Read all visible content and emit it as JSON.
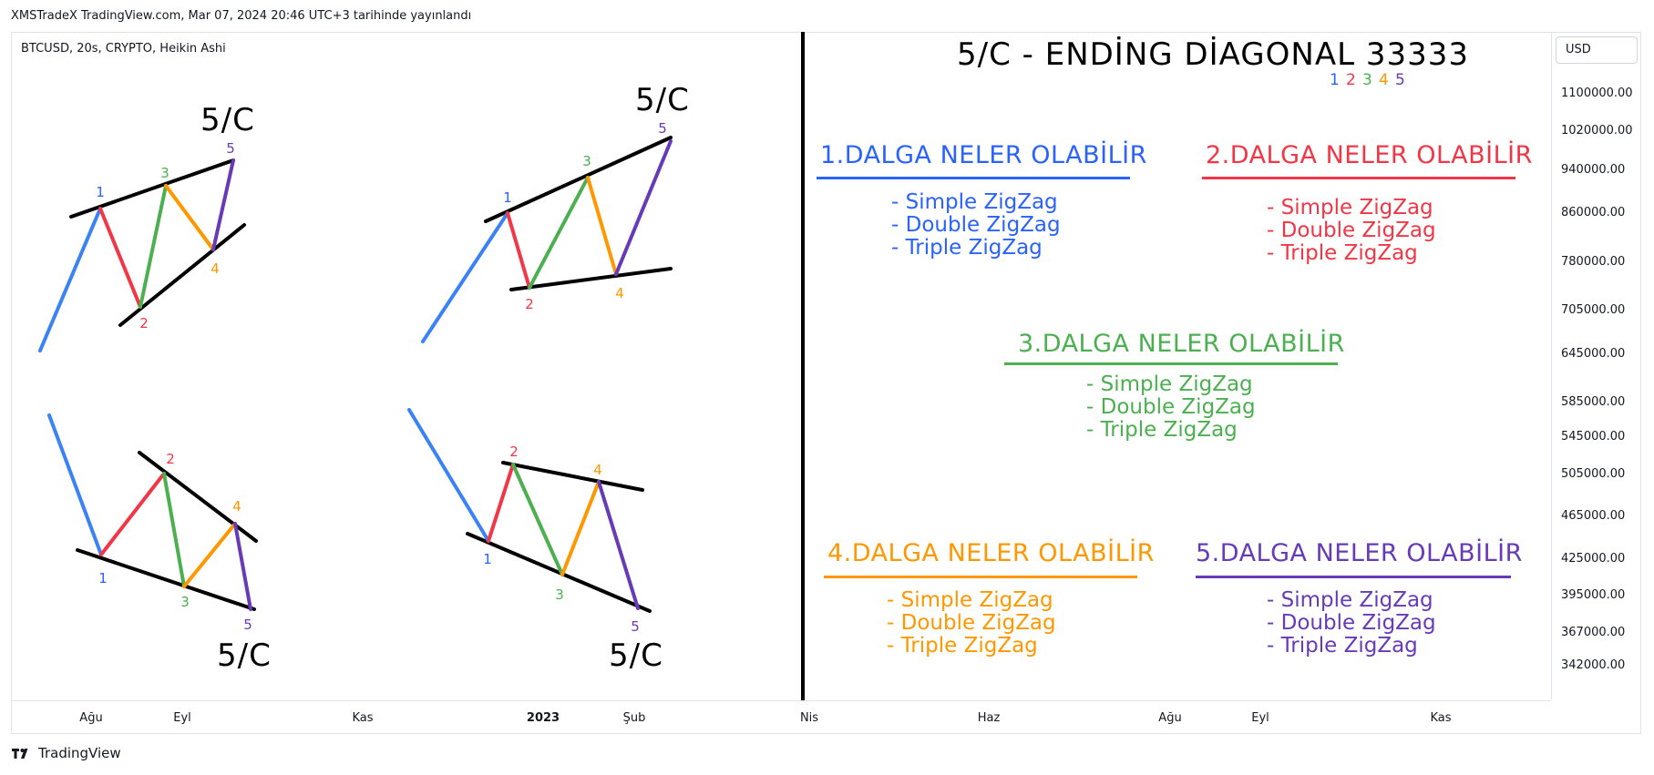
{
  "header": {
    "published_line": "XMSTradeX TradingView.com, Mar 07, 2024 20:46 UTC+3 tarihinde yayınlandı",
    "symbol_line": "BTCUSD, 20s, CRYPTO, Heikin Ashi"
  },
  "colors": {
    "wave1": "#2962ff",
    "wave2": "#f23645",
    "wave3": "#4caf50",
    "wave4": "#ff9800",
    "wave5": "#673ab7",
    "impulse": "#3b82f6",
    "divider": "#000000"
  },
  "main_title": "5/C - ENDİNG DİAGONAL  33333",
  "title_digits": [
    "1",
    "2",
    "3",
    "4",
    "5"
  ],
  "diagram_label": "5/C",
  "wave_labels": [
    "1",
    "2",
    "3",
    "4",
    "5"
  ],
  "wave_sections": [
    {
      "title": "1.DALGA NELER OLABİLİR",
      "items": [
        "- Simple ZigZag",
        "- Double ZigZag",
        "- Triple ZigZag"
      ]
    },
    {
      "title": "2.DALGA NELER OLABİLİR",
      "items": [
        "- Simple ZigZag",
        "- Double ZigZag",
        "- Triple ZigZag"
      ]
    },
    {
      "title": "3.DALGA NELER OLABİLİR",
      "items": [
        "- Simple ZigZag",
        "- Double ZigZag",
        "- Triple ZigZag"
      ]
    },
    {
      "title": "4.DALGA NELER OLABİLİR",
      "items": [
        "- Simple ZigZag",
        "- Double ZigZag",
        "- Triple ZigZag"
      ]
    },
    {
      "title": "5.DALGA NELER OLABİLİR",
      "items": [
        "- Simple ZigZag",
        "- Double ZigZag",
        "- Triple ZigZag"
      ]
    }
  ],
  "price_axis": {
    "currency": "USD",
    "labels": [
      "1100000.00",
      "1020000.00",
      "940000.00",
      "860000.00",
      "780000.00",
      "705000.00",
      "645000.00",
      "585000.00",
      "545000.00",
      "505000.00",
      "465000.00",
      "425000.00",
      "395000.00",
      "367000.00",
      "342000.00"
    ]
  },
  "time_axis": {
    "labels": [
      "Ağu",
      "Eyl",
      "Kas",
      "2023",
      "Şub",
      "Nis",
      "Haz",
      "Ağu",
      "Eyl",
      "Kas"
    ],
    "bold_label": "2023"
  },
  "brand": "TradingView",
  "chart_data": {
    "type": "line",
    "title": "5/C - ENDİNG DİAGONAL  33333",
    "ylabel": "USD",
    "y_tick_labels": [
      "1100000.00",
      "1020000.00",
      "940000.00",
      "860000.00",
      "780000.00",
      "705000.00",
      "645000.00",
      "585000.00",
      "545000.00",
      "505000.00",
      "465000.00",
      "425000.00",
      "395000.00",
      "367000.00",
      "342000.00"
    ],
    "x_tick_labels": [
      "Ağu",
      "Eyl",
      "Kas",
      "2023",
      "Şub",
      "Nis",
      "Haz",
      "Ağu",
      "Eyl",
      "Kas"
    ],
    "series": []
  }
}
